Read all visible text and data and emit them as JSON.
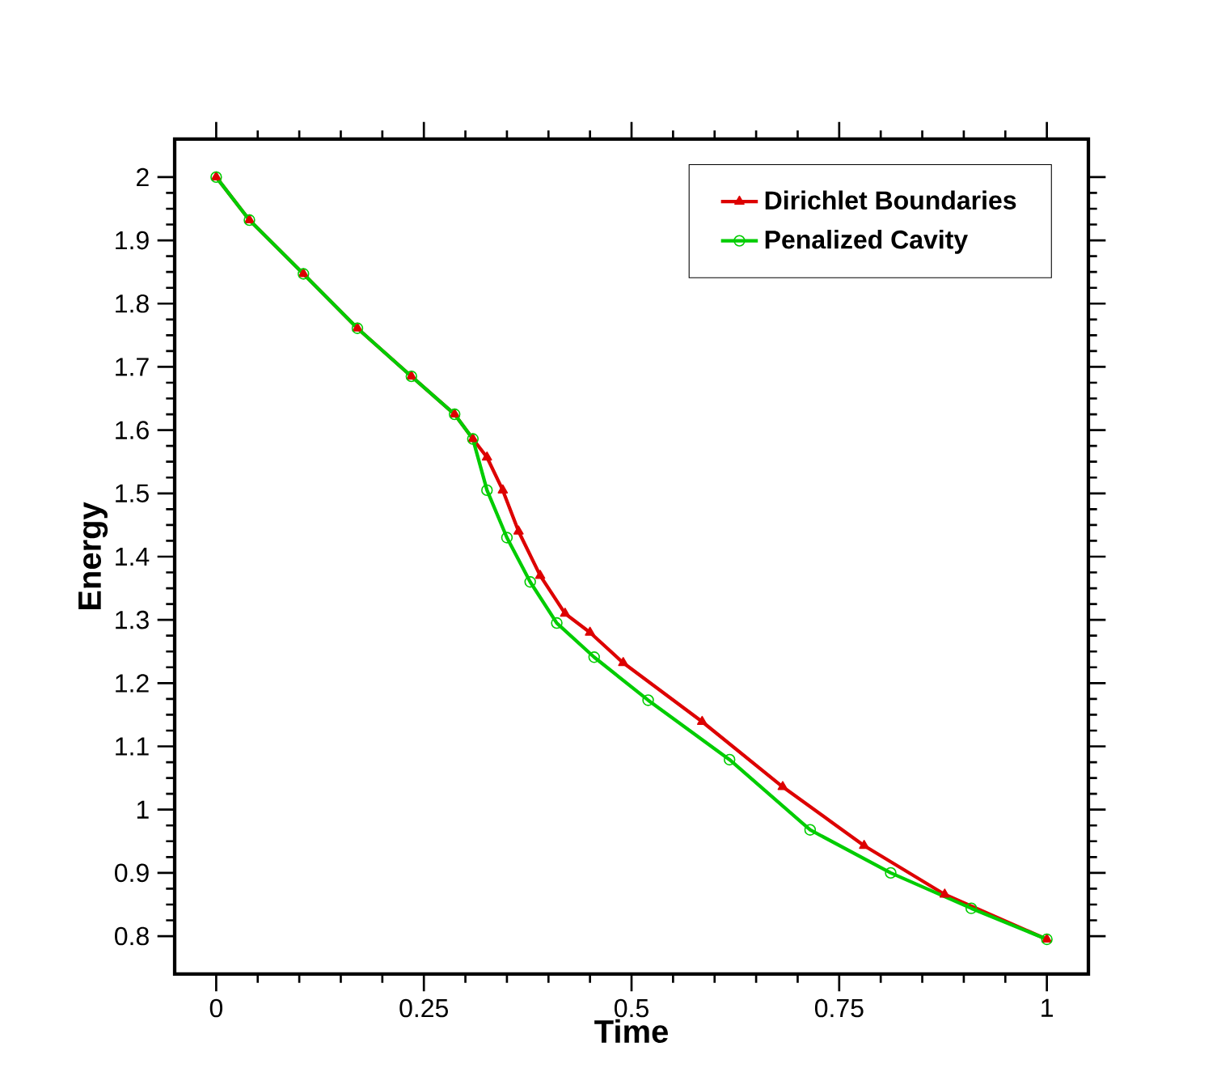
{
  "chart_data": {
    "type": "line",
    "xlabel": "Time",
    "ylabel": "Energy",
    "xlim": [
      -0.05,
      1.05
    ],
    "ylim": [
      0.74,
      2.06
    ],
    "xticks": [
      0,
      0.25,
      0.5,
      0.75,
      1
    ],
    "yticks": [
      0.8,
      0.9,
      1,
      1.1,
      1.2,
      1.3,
      1.4,
      1.5,
      1.6,
      1.7,
      1.8,
      1.9,
      2
    ],
    "grid": false,
    "legend": "top right",
    "line_style": "solid",
    "series": [
      {
        "name": "Dirichlet Boundaries",
        "color": "#dd0000",
        "marker": "triangle",
        "x": [
          0,
          0.04,
          0.105,
          0.17,
          0.235,
          0.287,
          0.309,
          0.326,
          0.345,
          0.364,
          0.39,
          0.42,
          0.45,
          0.49,
          0.585,
          0.682,
          0.78,
          0.877,
          1
        ],
        "values": [
          2.0,
          1.932,
          1.847,
          1.761,
          1.685,
          1.625,
          1.586,
          1.557,
          1.505,
          1.44,
          1.37,
          1.31,
          1.28,
          1.232,
          1.139,
          1.036,
          0.943,
          0.866,
          0.795
        ]
      },
      {
        "name": "Penalized Cavity",
        "color": "#00cc00",
        "marker": "circle",
        "x": [
          0,
          0.04,
          0.105,
          0.17,
          0.235,
          0.287,
          0.309,
          0.326,
          0.35,
          0.378,
          0.41,
          0.455,
          0.52,
          0.618,
          0.715,
          0.812,
          0.909,
          1
        ],
        "values": [
          2.0,
          1.932,
          1.847,
          1.761,
          1.685,
          1.625,
          1.586,
          1.505,
          1.43,
          1.36,
          1.295,
          1.241,
          1.173,
          1.079,
          0.968,
          0.9,
          0.844,
          0.795
        ]
      }
    ]
  }
}
